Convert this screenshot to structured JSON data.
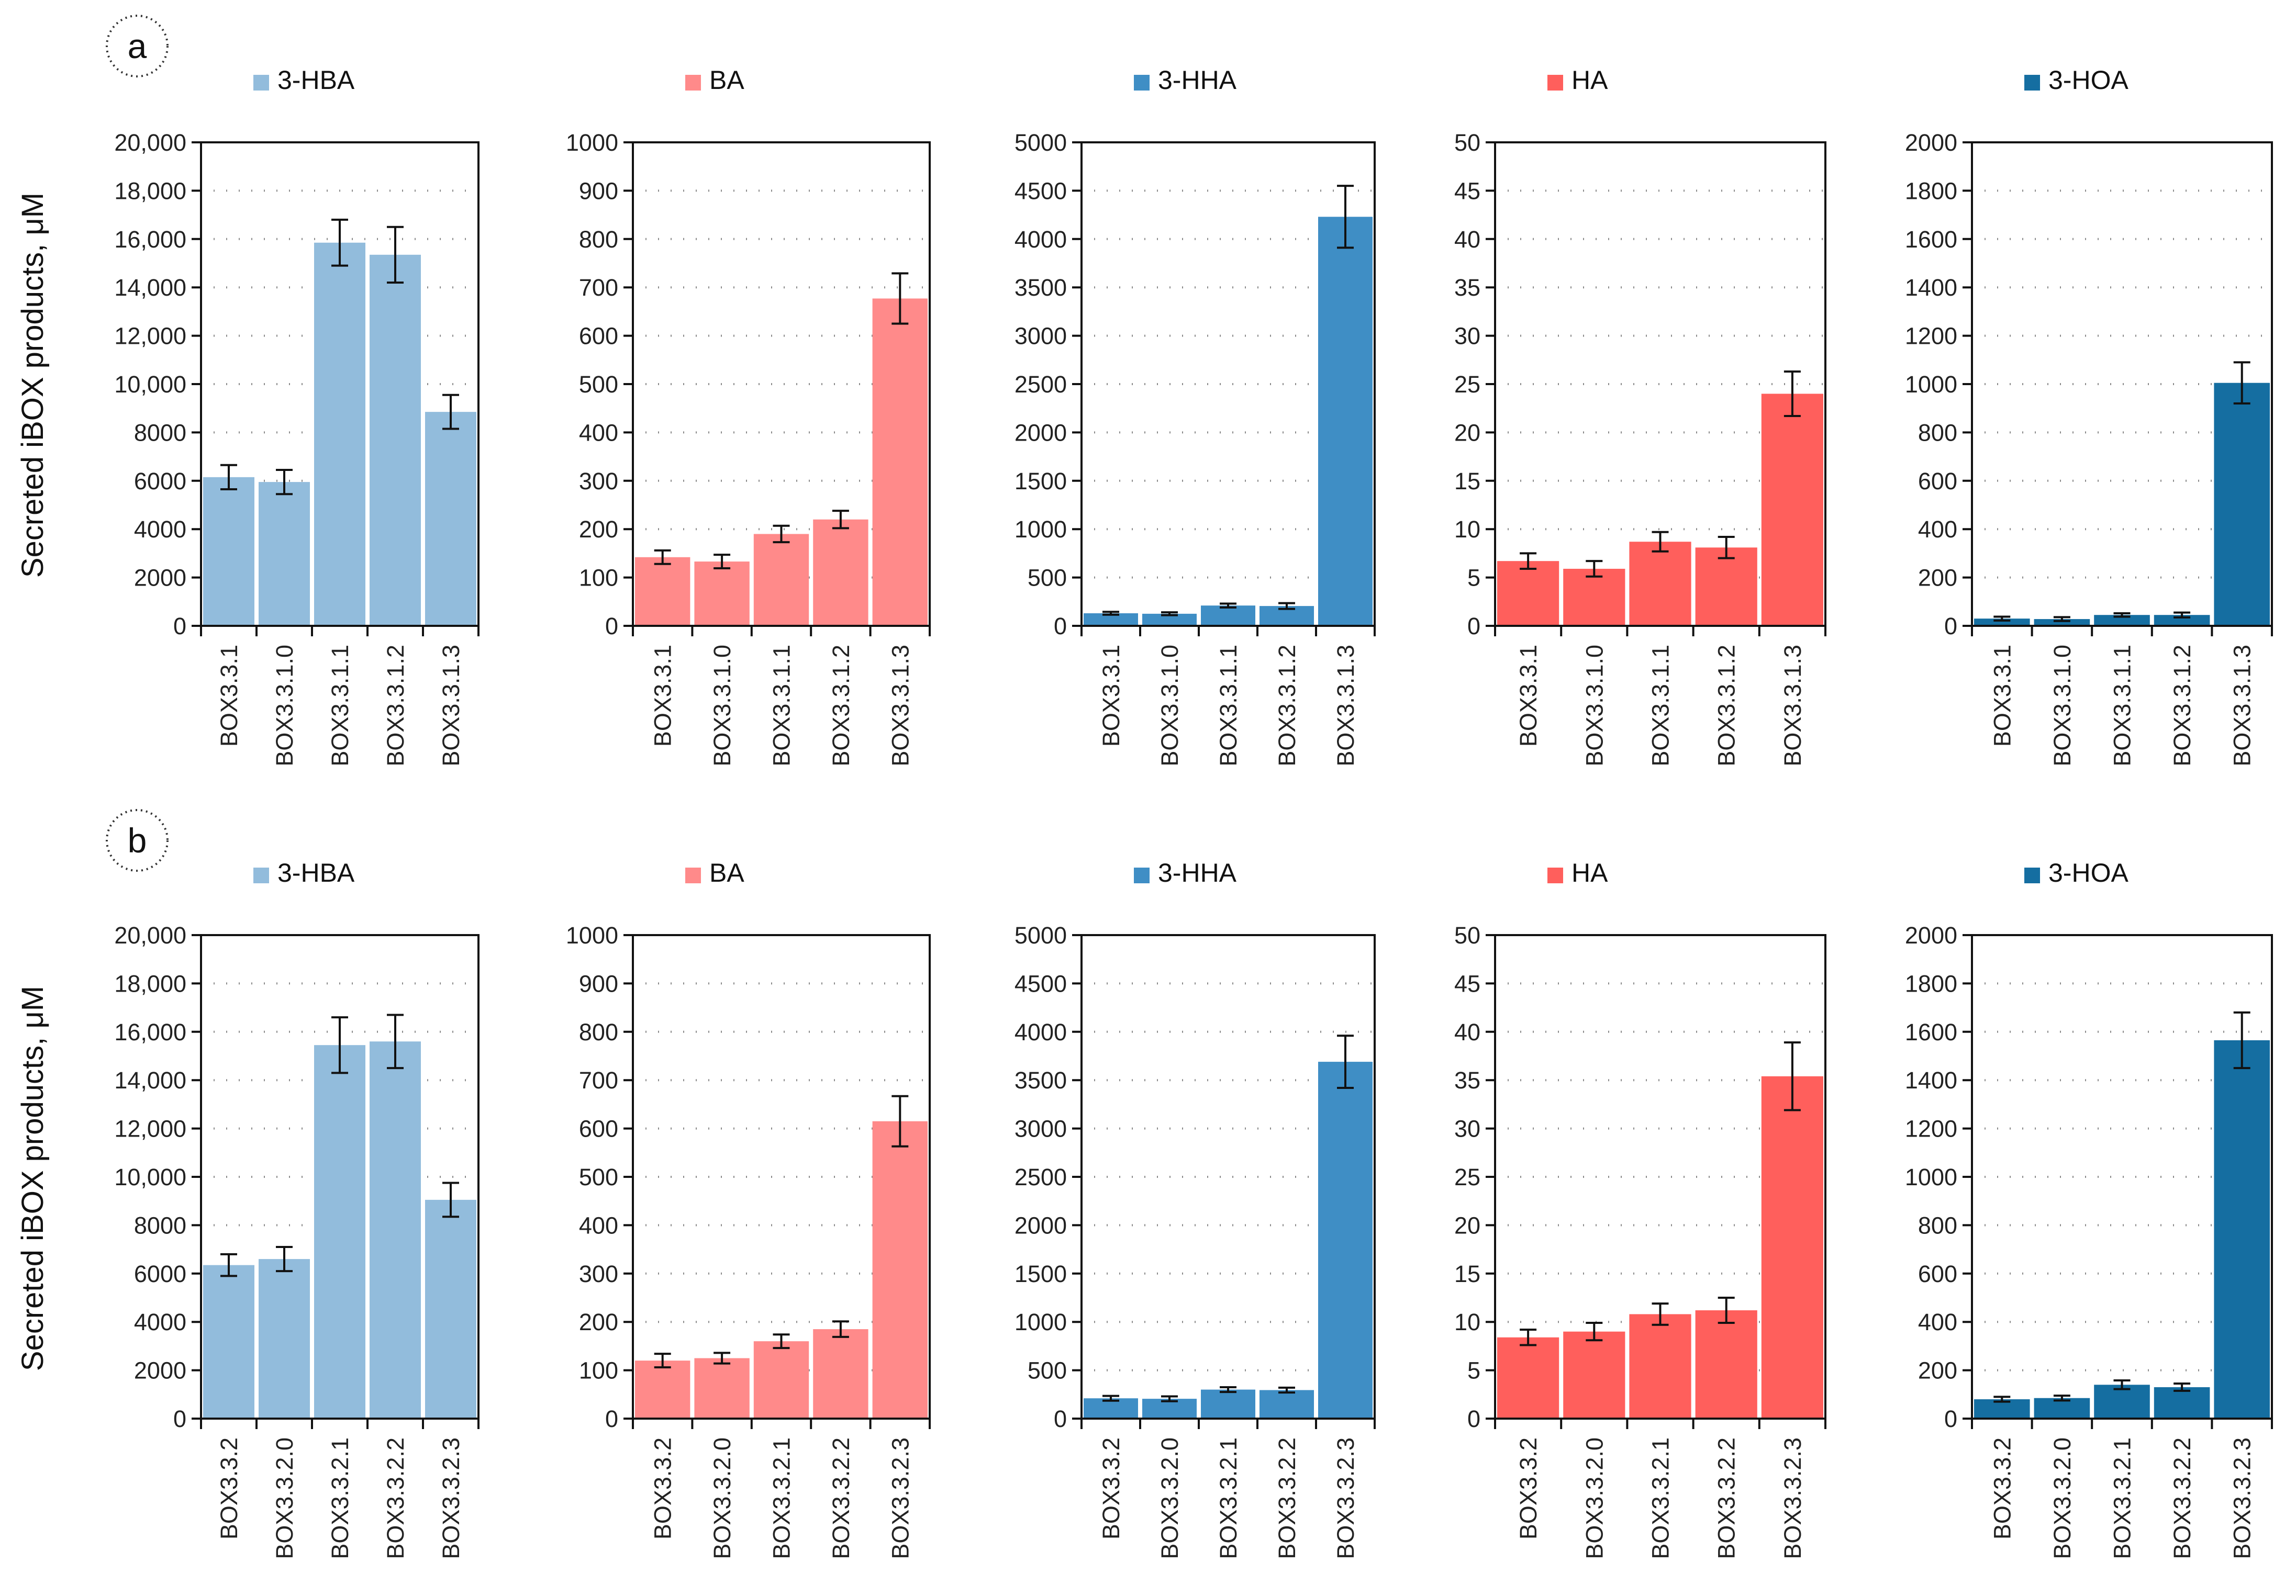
{
  "figure": {
    "ylabel": "Secreted iBOX products, μM",
    "rows": [
      {
        "label": "a"
      },
      {
        "label": "b"
      }
    ]
  },
  "chart_data": [
    {
      "type": "bar",
      "panel": "a",
      "series_name": "3-HBA",
      "color": "#92bcdc",
      "ylabel": "Secreted iBOX products, μM",
      "ylim": [
        0,
        20000
      ],
      "yticks": [
        "0",
        "2000",
        "4000",
        "6000",
        "8000",
        "10,000",
        "12,000",
        "14,000",
        "16,000",
        "18,000",
        "20,000"
      ],
      "categories": [
        "BOX3.3.1",
        "BOX3.3.1.0",
        "BOX3.3.1.1",
        "BOX3.3.1.2",
        "BOX3.3.1.3"
      ],
      "values": [
        6150,
        5950,
        15850,
        15350,
        8850
      ],
      "errors": [
        500,
        500,
        950,
        1150,
        700
      ]
    },
    {
      "type": "bar",
      "panel": "a",
      "series_name": "BA",
      "color": "#ff8a8a",
      "ylim": [
        0,
        1000
      ],
      "yticks": [
        "0",
        "100",
        "200",
        "300",
        "400",
        "500",
        "600",
        "700",
        "800",
        "900",
        "1000"
      ],
      "categories": [
        "BOX3.3.1",
        "BOX3.3.1.0",
        "BOX3.3.1.1",
        "BOX3.3.1.2",
        "BOX3.3.1.3"
      ],
      "values": [
        142,
        133,
        190,
        220,
        677
      ],
      "errors": [
        14,
        14,
        17,
        18,
        52
      ]
    },
    {
      "type": "bar",
      "panel": "a",
      "series_name": "3-HHA",
      "color": "#3f8ec5",
      "ylim": [
        0,
        5000
      ],
      "yticks": [
        "0",
        "500",
        "1000",
        "1500",
        "2000",
        "2500",
        "3000",
        "3500",
        "4000",
        "4500",
        "5000"
      ],
      "categories": [
        "BOX3.3.1",
        "BOX3.3.1.0",
        "BOX3.3.1.1",
        "BOX3.3.1.2",
        "BOX3.3.1.3"
      ],
      "values": [
        130,
        125,
        210,
        205,
        4230
      ],
      "errors": [
        15,
        15,
        20,
        30,
        320
      ]
    },
    {
      "type": "bar",
      "panel": "a",
      "series_name": "HA",
      "color": "#ff5f5c",
      "ylim": [
        0,
        50
      ],
      "yticks": [
        "0",
        "5",
        "10",
        "15",
        "20",
        "25",
        "30",
        "35",
        "40",
        "45",
        "50"
      ],
      "categories": [
        "BOX3.3.1",
        "BOX3.3.1.0",
        "BOX3.3.1.1",
        "BOX3.3.1.2",
        "BOX3.3.1.3"
      ],
      "values": [
        6.7,
        5.9,
        8.7,
        8.1,
        24.0
      ],
      "errors": [
        0.8,
        0.8,
        1.0,
        1.1,
        2.3
      ]
    },
    {
      "type": "bar",
      "panel": "a",
      "series_name": "3-HOA",
      "color": "#156ea1",
      "ylim": [
        0,
        2000
      ],
      "yticks": [
        "0",
        "200",
        "400",
        "600",
        "800",
        "1000",
        "1200",
        "1400",
        "1600",
        "1800",
        "2000"
      ],
      "categories": [
        "BOX3.3.1",
        "BOX3.3.1.0",
        "BOX3.3.1.1",
        "BOX3.3.1.2",
        "BOX3.3.1.3"
      ],
      "values": [
        30,
        28,
        45,
        45,
        1005
      ],
      "errors": [
        8,
        8,
        7,
        10,
        85
      ]
    },
    {
      "type": "bar",
      "panel": "b",
      "series_name": "3-HBA",
      "color": "#92bcdc",
      "ylabel": "Secreted iBOX products, μM",
      "ylim": [
        0,
        20000
      ],
      "yticks": [
        "0",
        "2000",
        "4000",
        "6000",
        "8000",
        "10,000",
        "12,000",
        "14,000",
        "16,000",
        "18,000",
        "20,000"
      ],
      "categories": [
        "BOX3.3.2",
        "BOX3.3.2.0",
        "BOX3.3.2.1",
        "BOX3.3.2.2",
        "BOX3.3.2.3"
      ],
      "values": [
        6350,
        6600,
        15450,
        15600,
        9050
      ],
      "errors": [
        450,
        500,
        1150,
        1100,
        700
      ]
    },
    {
      "type": "bar",
      "panel": "b",
      "series_name": "BA",
      "color": "#ff8a8a",
      "ylim": [
        0,
        1000
      ],
      "yticks": [
        "0",
        "100",
        "200",
        "300",
        "400",
        "500",
        "600",
        "700",
        "800",
        "900",
        "1000"
      ],
      "categories": [
        "BOX3.3.2",
        "BOX3.3.2.0",
        "BOX3.3.2.1",
        "BOX3.3.2.2",
        "BOX3.3.2.3"
      ],
      "values": [
        120,
        125,
        160,
        185,
        615
      ],
      "errors": [
        14,
        11,
        14,
        16,
        52
      ]
    },
    {
      "type": "bar",
      "panel": "b",
      "series_name": "3-HHA",
      "color": "#3f8ec5",
      "ylim": [
        0,
        5000
      ],
      "yticks": [
        "0",
        "500",
        "1000",
        "1500",
        "2000",
        "2500",
        "3000",
        "3500",
        "4000",
        "4500",
        "5000"
      ],
      "categories": [
        "BOX3.3.2",
        "BOX3.3.2.0",
        "BOX3.3.2.1",
        "BOX3.3.2.2",
        "BOX3.3.2.3"
      ],
      "values": [
        210,
        205,
        300,
        295,
        3690
      ],
      "errors": [
        25,
        25,
        25,
        25,
        270
      ]
    },
    {
      "type": "bar",
      "panel": "b",
      "series_name": "HA",
      "color": "#ff5f5c",
      "ylim": [
        0,
        50
      ],
      "yticks": [
        "0",
        "5",
        "10",
        "15",
        "20",
        "25",
        "30",
        "35",
        "40",
        "45",
        "50"
      ],
      "categories": [
        "BOX3.3.2",
        "BOX3.3.2.0",
        "BOX3.3.2.1",
        "BOX3.3.2.2",
        "BOX3.3.2.3"
      ],
      "values": [
        8.4,
        9.0,
        10.8,
        11.2,
        35.4
      ],
      "errors": [
        0.8,
        0.9,
        1.1,
        1.3,
        3.5
      ]
    },
    {
      "type": "bar",
      "panel": "b",
      "series_name": "3-HOA",
      "color": "#156ea1",
      "ylim": [
        0,
        2000
      ],
      "yticks": [
        "0",
        "200",
        "400",
        "600",
        "800",
        "1000",
        "1200",
        "1400",
        "1600",
        "1800",
        "2000"
      ],
      "categories": [
        "BOX3.3.2",
        "BOX3.3.2.0",
        "BOX3.3.2.1",
        "BOX3.3.2.2",
        "BOX3.3.2.3"
      ],
      "values": [
        80,
        85,
        140,
        130,
        1565
      ],
      "errors": [
        10,
        10,
        18,
        15,
        115
      ]
    }
  ]
}
